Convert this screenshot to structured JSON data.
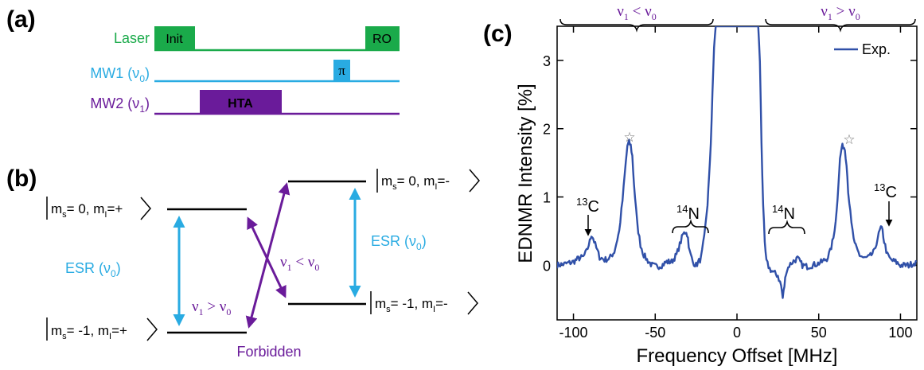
{
  "panels": {
    "a": {
      "label": "(a)",
      "rows": [
        {
          "name": "Laser",
          "color": "#1aaa4a"
        },
        {
          "name": "MW1 (ν",
          "sub": "0",
          "close": ")",
          "color": "#29abe2"
        },
        {
          "name": "MW2 (ν",
          "sub": "1",
          "close": ")",
          "color": "#6a1b9a"
        }
      ],
      "pulses": {
        "init": "Init",
        "ro": "RO",
        "pi": "π",
        "hta": "HTA"
      }
    },
    "b": {
      "label": "(b)",
      "states": {
        "left_top": {
          "pre": "m",
          "s": "s",
          "mid": "= 0, m",
          "i": "I",
          "post": "=+"
        },
        "left_bottom": {
          "pre": "m",
          "s": "s",
          "mid": "= -1, m",
          "i": "I",
          "post": "=+"
        },
        "right_top": {
          "pre": "m",
          "s": "s",
          "mid": "= 0, m",
          "i": "I",
          "post": "=-"
        },
        "right_bottom": {
          "pre": "m",
          "s": "s",
          "mid": "= -1, m",
          "i": "I",
          "post": "=-"
        }
      },
      "esr": {
        "text": "ESR (ν",
        "sub": "0",
        "close": ")",
        "color": "#29abe2"
      },
      "forbidden": {
        "text": "Forbidden",
        "color": "#6a1b9a"
      },
      "cond_gt": {
        "a": "ν",
        "asub": "1",
        "op": " > ν",
        "bsub": "0"
      },
      "cond_lt": {
        "a": "ν",
        "asub": "1",
        "op": " < ν",
        "bsub": "0"
      }
    },
    "c": {
      "label": "(c)"
    }
  },
  "chart_data": {
    "type": "line",
    "xlabel": "Frequency Offset [MHz]",
    "ylabel": "EDNMR Intensity [%]",
    "xlim": [
      -110,
      110
    ],
    "ylim": [
      -0.8,
      3.5
    ],
    "xticks": [
      -100,
      -50,
      0,
      50,
      100
    ],
    "yticks": [
      0,
      1,
      2,
      3
    ],
    "line_color": "#3050a8",
    "series": [
      {
        "name": "Exp.",
        "x": [
          -110,
          -105,
          -100,
          -97,
          -94,
          -92,
          -90,
          -89,
          -88,
          -86,
          -84,
          -81,
          -78,
          -75,
          -72,
          -70,
          -68,
          -67,
          -66,
          -65,
          -64,
          -63,
          -61,
          -59,
          -57,
          -55,
          -52,
          -49,
          -46,
          -43,
          -40,
          -37,
          -35,
          -33,
          -31,
          -30,
          -29,
          -27,
          -25,
          -22,
          -20,
          -18,
          -17,
          -16,
          -15,
          -14,
          -13,
          -12.5,
          12.5,
          13,
          14,
          15,
          16,
          17,
          18,
          20,
          22,
          25,
          27,
          28,
          29,
          30,
          32,
          34,
          37,
          40,
          43,
          46,
          49,
          52,
          55,
          57,
          59,
          61,
          62,
          63,
          64,
          65,
          66,
          67,
          68,
          70,
          72,
          75,
          78,
          81,
          84,
          86,
          88,
          89,
          90,
          92,
          94,
          97,
          100,
          105,
          110
        ],
        "y": [
          0.0,
          0.02,
          0.05,
          0.1,
          0.12,
          0.2,
          0.35,
          0.45,
          0.4,
          0.25,
          0.12,
          0.08,
          0.1,
          0.2,
          0.5,
          0.95,
          1.5,
          1.75,
          1.8,
          1.75,
          1.6,
          1.2,
          0.6,
          0.3,
          0.15,
          0.08,
          0.0,
          -0.02,
          0.0,
          0.05,
          0.05,
          0.15,
          0.3,
          0.45,
          0.5,
          0.4,
          0.2,
          0.05,
          0.0,
          0.1,
          0.4,
          0.9,
          1.3,
          1.8,
          2.5,
          3.2,
          3.5,
          3.5,
          3.5,
          3.5,
          3.0,
          1.8,
          0.9,
          0.3,
          0.05,
          -0.05,
          -0.1,
          -0.15,
          -0.3,
          -0.48,
          -0.3,
          -0.1,
          0.0,
          0.05,
          0.1,
          0.0,
          -0.02,
          0.0,
          0.02,
          0.05,
          0.1,
          0.2,
          0.4,
          0.8,
          1.2,
          1.55,
          1.72,
          1.75,
          1.7,
          1.5,
          1.1,
          0.6,
          0.3,
          0.15,
          0.1,
          0.12,
          0.2,
          0.4,
          0.55,
          0.5,
          0.35,
          0.15,
          0.08,
          0.05,
          0.0,
          0.0,
          0.05
        ]
      }
    ],
    "annotations": {
      "region_left": {
        "a": "ν",
        "asub": "1",
        "op": " < ν",
        "bsub": "0"
      },
      "region_right": {
        "a": "ν",
        "asub": "1",
        "op": " > ν",
        "bsub": "0"
      },
      "c13": {
        "sup": "13",
        "base": "C"
      },
      "n14": {
        "sup": "14",
        "base": "N"
      },
      "star": "☆"
    }
  }
}
